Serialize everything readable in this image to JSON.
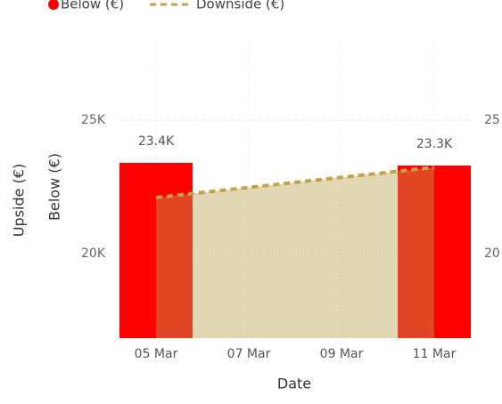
{
  "chart_data": {
    "type": "combo",
    "x_label": "Date",
    "y_labels": [
      "Upside (€)",
      "Below (€)"
    ],
    "categories": [
      "05 Mar",
      null,
      "07 Mar",
      null,
      "09 Mar",
      null,
      "11 Mar"
    ],
    "series": [
      {
        "name": "Below (€)",
        "type": "bar",
        "color": "#ff0000",
        "values": [
          23400,
          null,
          null,
          null,
          null,
          null,
          23300
        ],
        "value_labels": [
          "23.4K",
          null,
          null,
          null,
          null,
          null,
          "23.3K"
        ]
      },
      {
        "name": "Downside (€)",
        "type": "area",
        "color": "#c4a24a",
        "fill": "#baa354",
        "dashed": true,
        "values": [
          22100,
          22289,
          22478,
          22667,
          22856,
          23044,
          23233
        ]
      }
    ],
    "ylim": [
      16833,
      28000
    ],
    "yticks": [
      {
        "value": 20000,
        "label": "20K"
      },
      {
        "value": 25000,
        "label": "25K"
      }
    ],
    "y2lim": [
      16833,
      28000
    ],
    "y2ticks": [
      {
        "value": 20000,
        "label": "20"
      },
      {
        "value": 25000,
        "label": "25"
      }
    ],
    "grid": true
  }
}
